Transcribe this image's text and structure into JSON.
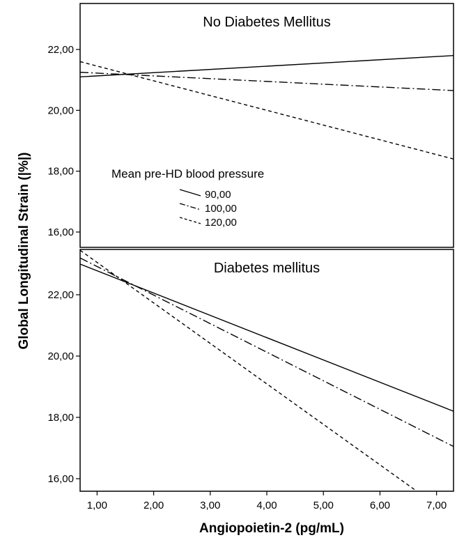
{
  "chart_data": {
    "type": "line",
    "xlabel": "Angiopoietin-2 (pg/mL)",
    "ylabel": "Global Longitudinal Strain (|%|)",
    "xlim": [
      0.7,
      7.3
    ],
    "ylim": [
      15.5,
      23.5
    ],
    "x_ticks": [
      1,
      2,
      3,
      4,
      5,
      6,
      7
    ],
    "x_tick_labels": [
      "1,00",
      "2,00",
      "3,00",
      "4,00",
      "5,00",
      "6,00",
      "7,00"
    ],
    "y_ticks": [
      16,
      18,
      20,
      22
    ],
    "y_tick_labels": [
      "16,00",
      "18,00",
      "20,00",
      "22,00"
    ],
    "grid": false,
    "legend": {
      "title": "Mean pre-HD blood pressure",
      "placement": "left, inside top panel",
      "entries": [
        "90,00",
        "100,00",
        "120,00"
      ]
    },
    "panels": [
      {
        "title": "No Diabetes Mellitus",
        "series": [
          {
            "name": "90,00",
            "style": "solid",
            "x": [
              0.7,
              7.3
            ],
            "y": [
              21.1,
              21.8
            ]
          },
          {
            "name": "100,00",
            "style": "dashdot",
            "x": [
              0.7,
              7.3
            ],
            "y": [
              21.25,
              20.65
            ]
          },
          {
            "name": "120,00",
            "style": "dashed",
            "x": [
              0.7,
              7.3
            ],
            "y": [
              21.6,
              18.4
            ]
          }
        ]
      },
      {
        "title": "Diabetes mellitus",
        "series": [
          {
            "name": "90,00",
            "style": "solid",
            "x": [
              0.7,
              7.3
            ],
            "y": [
              23.0,
              18.2
            ]
          },
          {
            "name": "100,00",
            "style": "dashdot",
            "x": [
              0.7,
              7.3
            ],
            "y": [
              23.2,
              17.05
            ]
          },
          {
            "name": "120,00",
            "style": "dashed",
            "x": [
              0.7,
              6.72
            ],
            "y": [
              23.45,
              15.5
            ]
          }
        ]
      }
    ]
  }
}
